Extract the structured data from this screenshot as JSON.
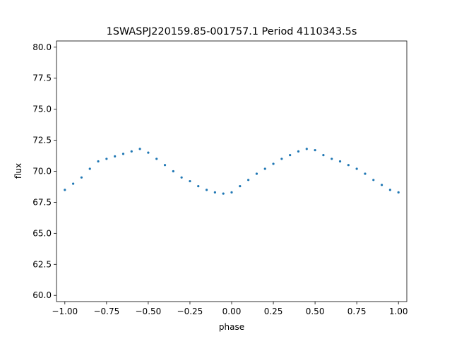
{
  "chart_data": {
    "type": "scatter",
    "title": "1SWASPJ220159.85-001757.1 Period 4110343.5s",
    "xlabel": "phase",
    "ylabel": "flux",
    "xlim": [
      -1.05,
      1.05
    ],
    "ylim": [
      59.5,
      80.5
    ],
    "xticks": [
      -1.0,
      -0.75,
      -0.5,
      -0.25,
      0.0,
      0.25,
      0.5,
      0.75,
      1.0
    ],
    "xtick_labels": [
      "−1.00",
      "−0.75",
      "−0.50",
      "−0.25",
      "0.00",
      "0.25",
      "0.50",
      "0.75",
      "1.00"
    ],
    "yticks": [
      60.0,
      62.5,
      65.0,
      67.5,
      70.0,
      72.5,
      75.0,
      77.5,
      80.0
    ],
    "ytick_labels": [
      "60.0",
      "62.5",
      "65.0",
      "67.5",
      "70.0",
      "72.5",
      "75.0",
      "77.5",
      "80.0"
    ],
    "grid": false,
    "legend": "none",
    "marker_color": "#1f77b4",
    "series": [
      {
        "x": [
          -1.0,
          -0.95,
          -0.9,
          -0.85,
          -0.8,
          -0.75,
          -0.7,
          -0.65,
          -0.6,
          -0.55,
          -0.5,
          -0.45,
          -0.4,
          -0.35,
          -0.3,
          -0.25,
          -0.2,
          -0.15,
          -0.1,
          -0.05,
          0.0,
          0.05,
          0.1,
          0.15,
          0.2,
          0.25,
          0.3,
          0.35,
          0.4,
          0.45,
          0.5,
          0.55,
          0.6,
          0.65,
          0.7,
          0.75,
          0.8,
          0.85,
          0.9,
          0.95,
          1.0
        ],
        "y": [
          68.5,
          69.0,
          69.5,
          70.2,
          70.8,
          71.0,
          71.2,
          71.4,
          71.6,
          71.8,
          71.5,
          71.0,
          70.5,
          70.0,
          69.5,
          69.2,
          68.8,
          68.5,
          68.3,
          68.2,
          68.3,
          68.8,
          69.3,
          69.8,
          70.2,
          70.6,
          71.0,
          71.3,
          71.6,
          71.8,
          71.7,
          71.3,
          71.0,
          70.8,
          70.5,
          70.2,
          69.8,
          69.3,
          68.9,
          68.5,
          68.3
        ]
      }
    ]
  }
}
